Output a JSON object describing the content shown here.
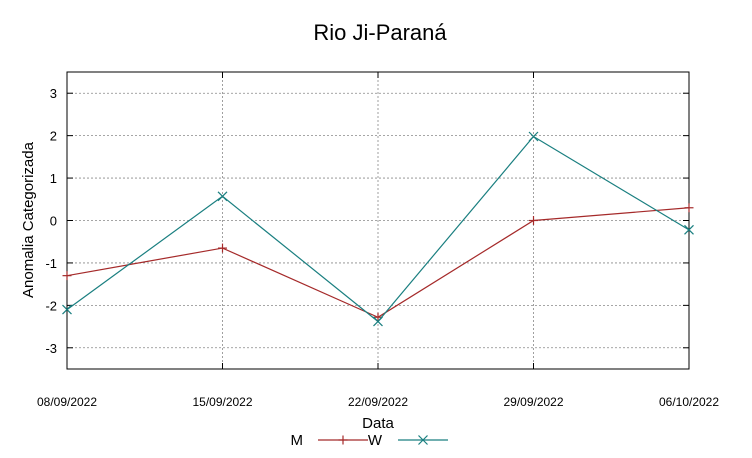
{
  "chart_data": {
    "type": "line",
    "title": "Rio Ji-Paraná",
    "xlabel": "Data",
    "ylabel": "Anomalia Categorizada",
    "x": [
      "08/09/2022",
      "15/09/2022",
      "22/09/2022",
      "29/09/2022",
      "06/10/2022"
    ],
    "x_ticks": [
      "08/09/2022",
      "15/09/2022",
      "22/09/2022",
      "29/09/2022",
      "06/10/2022"
    ],
    "y_ticks": [
      3,
      2,
      1,
      0,
      -1,
      -2,
      -3
    ],
    "ylim": [
      -3.5,
      3.5
    ],
    "grid": true,
    "legend_position": "bottom-center",
    "series": [
      {
        "name": "M",
        "color": "#a52a2a",
        "marker": "plus",
        "values": [
          -1.3,
          -0.65,
          -2.28,
          0.0,
          0.3
        ]
      },
      {
        "name": "W",
        "color": "#1a7f80",
        "marker": "cross",
        "values": [
          -2.1,
          0.57,
          -2.38,
          1.98,
          -0.22
        ]
      }
    ]
  }
}
